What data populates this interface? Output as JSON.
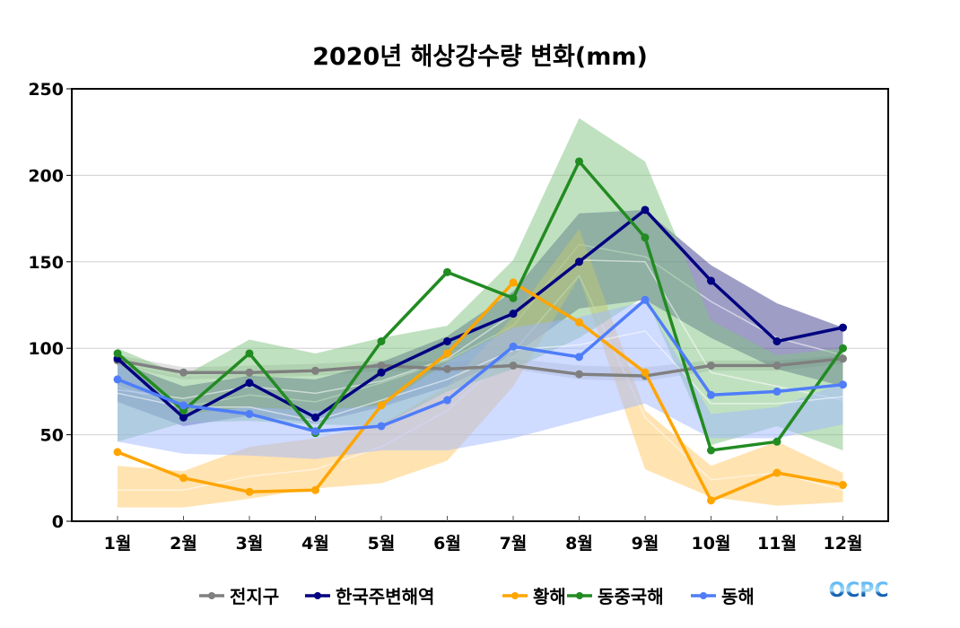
{
  "chart_data": {
    "type": "line",
    "title": "2020년 해상강수량 변화(mm)",
    "xlabel": "",
    "ylabel": "",
    "ylim": [
      0,
      250
    ],
    "yticks": [
      0,
      50,
      100,
      150,
      200,
      250
    ],
    "grid": true,
    "legend_position": "bottom-center",
    "categories": [
      "1월",
      "2월",
      "3월",
      "4월",
      "5월",
      "6월",
      "7월",
      "8월",
      "9월",
      "10월",
      "11월",
      "12월"
    ],
    "series": [
      {
        "name": "전지구",
        "color": "#808080",
        "band_color": "#c8c8c8",
        "values": [
          93,
          86,
          86,
          87,
          90,
          88,
          90,
          85,
          84,
          90,
          90,
          94
        ],
        "band_upper": [
          96,
          89,
          90,
          91,
          93,
          92,
          94,
          90,
          89,
          93,
          93,
          96
        ],
        "band_lower": [
          90,
          82,
          83,
          84,
          87,
          86,
          88,
          82,
          81,
          87,
          87,
          91
        ],
        "band_mean": [
          92,
          84,
          86,
          86,
          89,
          89,
          91,
          86,
          84,
          89,
          89,
          93
        ]
      },
      {
        "name": "한국주변해역",
        "color": "#000080",
        "band_color": "#3c3c8c",
        "values": [
          94,
          60,
          80,
          60,
          86,
          104,
          120,
          150,
          180,
          139,
          104,
          112
        ],
        "band_upper": [
          92,
          78,
          84,
          82,
          92,
          107,
          133,
          178,
          180,
          148,
          126,
          112
        ],
        "band_lower": [
          69,
          55,
          61,
          57,
          66,
          78,
          96,
          123,
          128,
          106,
          88,
          78
        ],
        "band_mean": [
          78,
          66,
          73,
          69,
          80,
          93,
          113,
          160,
          153,
          127,
          106,
          96
        ]
      },
      {
        "name": "황해",
        "color": "#ffa500",
        "band_color": "#ffc864",
        "values": [
          40,
          25,
          17,
          18,
          67,
          97,
          138,
          115,
          86,
          12,
          28,
          21
        ],
        "band_upper": [
          32,
          29,
          43,
          48,
          56,
          78,
          118,
          169,
          64,
          32,
          46,
          28
        ],
        "band_lower": [
          8,
          8,
          13,
          19,
          22,
          35,
          78,
          141,
          30,
          14,
          9,
          11
        ],
        "band_mean": [
          18,
          18,
          26,
          30,
          43,
          64,
          98,
          142,
          60,
          24,
          28,
          18
        ]
      },
      {
        "name": "동중국해",
        "color": "#228b22",
        "band_color": "#82c382",
        "values": [
          97,
          64,
          97,
          51,
          104,
          144,
          129,
          208,
          164,
          41,
          46,
          100
        ],
        "band_upper": [
          100,
          84,
          105,
          97,
          106,
          113,
          151,
          233,
          208,
          116,
          96,
          100
        ],
        "band_lower": [
          46,
          57,
          58,
          56,
          55,
          75,
          88,
          106,
          130,
          44,
          55,
          41
        ],
        "band_mean": [
          76,
          71,
          78,
          74,
          81,
          94,
          120,
          151,
          150,
          86,
          78,
          70
        ]
      },
      {
        "name": "동해",
        "color": "#4f7df9",
        "band_color": "#9fb8ff",
        "values": [
          82,
          67,
          62,
          52,
          55,
          70,
          101,
          95,
          128,
          73,
          75,
          79
        ],
        "band_upper": [
          92,
          62,
          66,
          64,
          67,
          92,
          112,
          118,
          127,
          62,
          66,
          80
        ],
        "band_lower": [
          46,
          39,
          38,
          36,
          41,
          41,
          48,
          58,
          68,
          48,
          48,
          56
        ],
        "band_mean": [
          74,
          66,
          66,
          58,
          70,
          82,
          99,
          102,
          110,
          68,
          68,
          72
        ]
      }
    ]
  },
  "logo": {
    "text": "OCPC"
  }
}
